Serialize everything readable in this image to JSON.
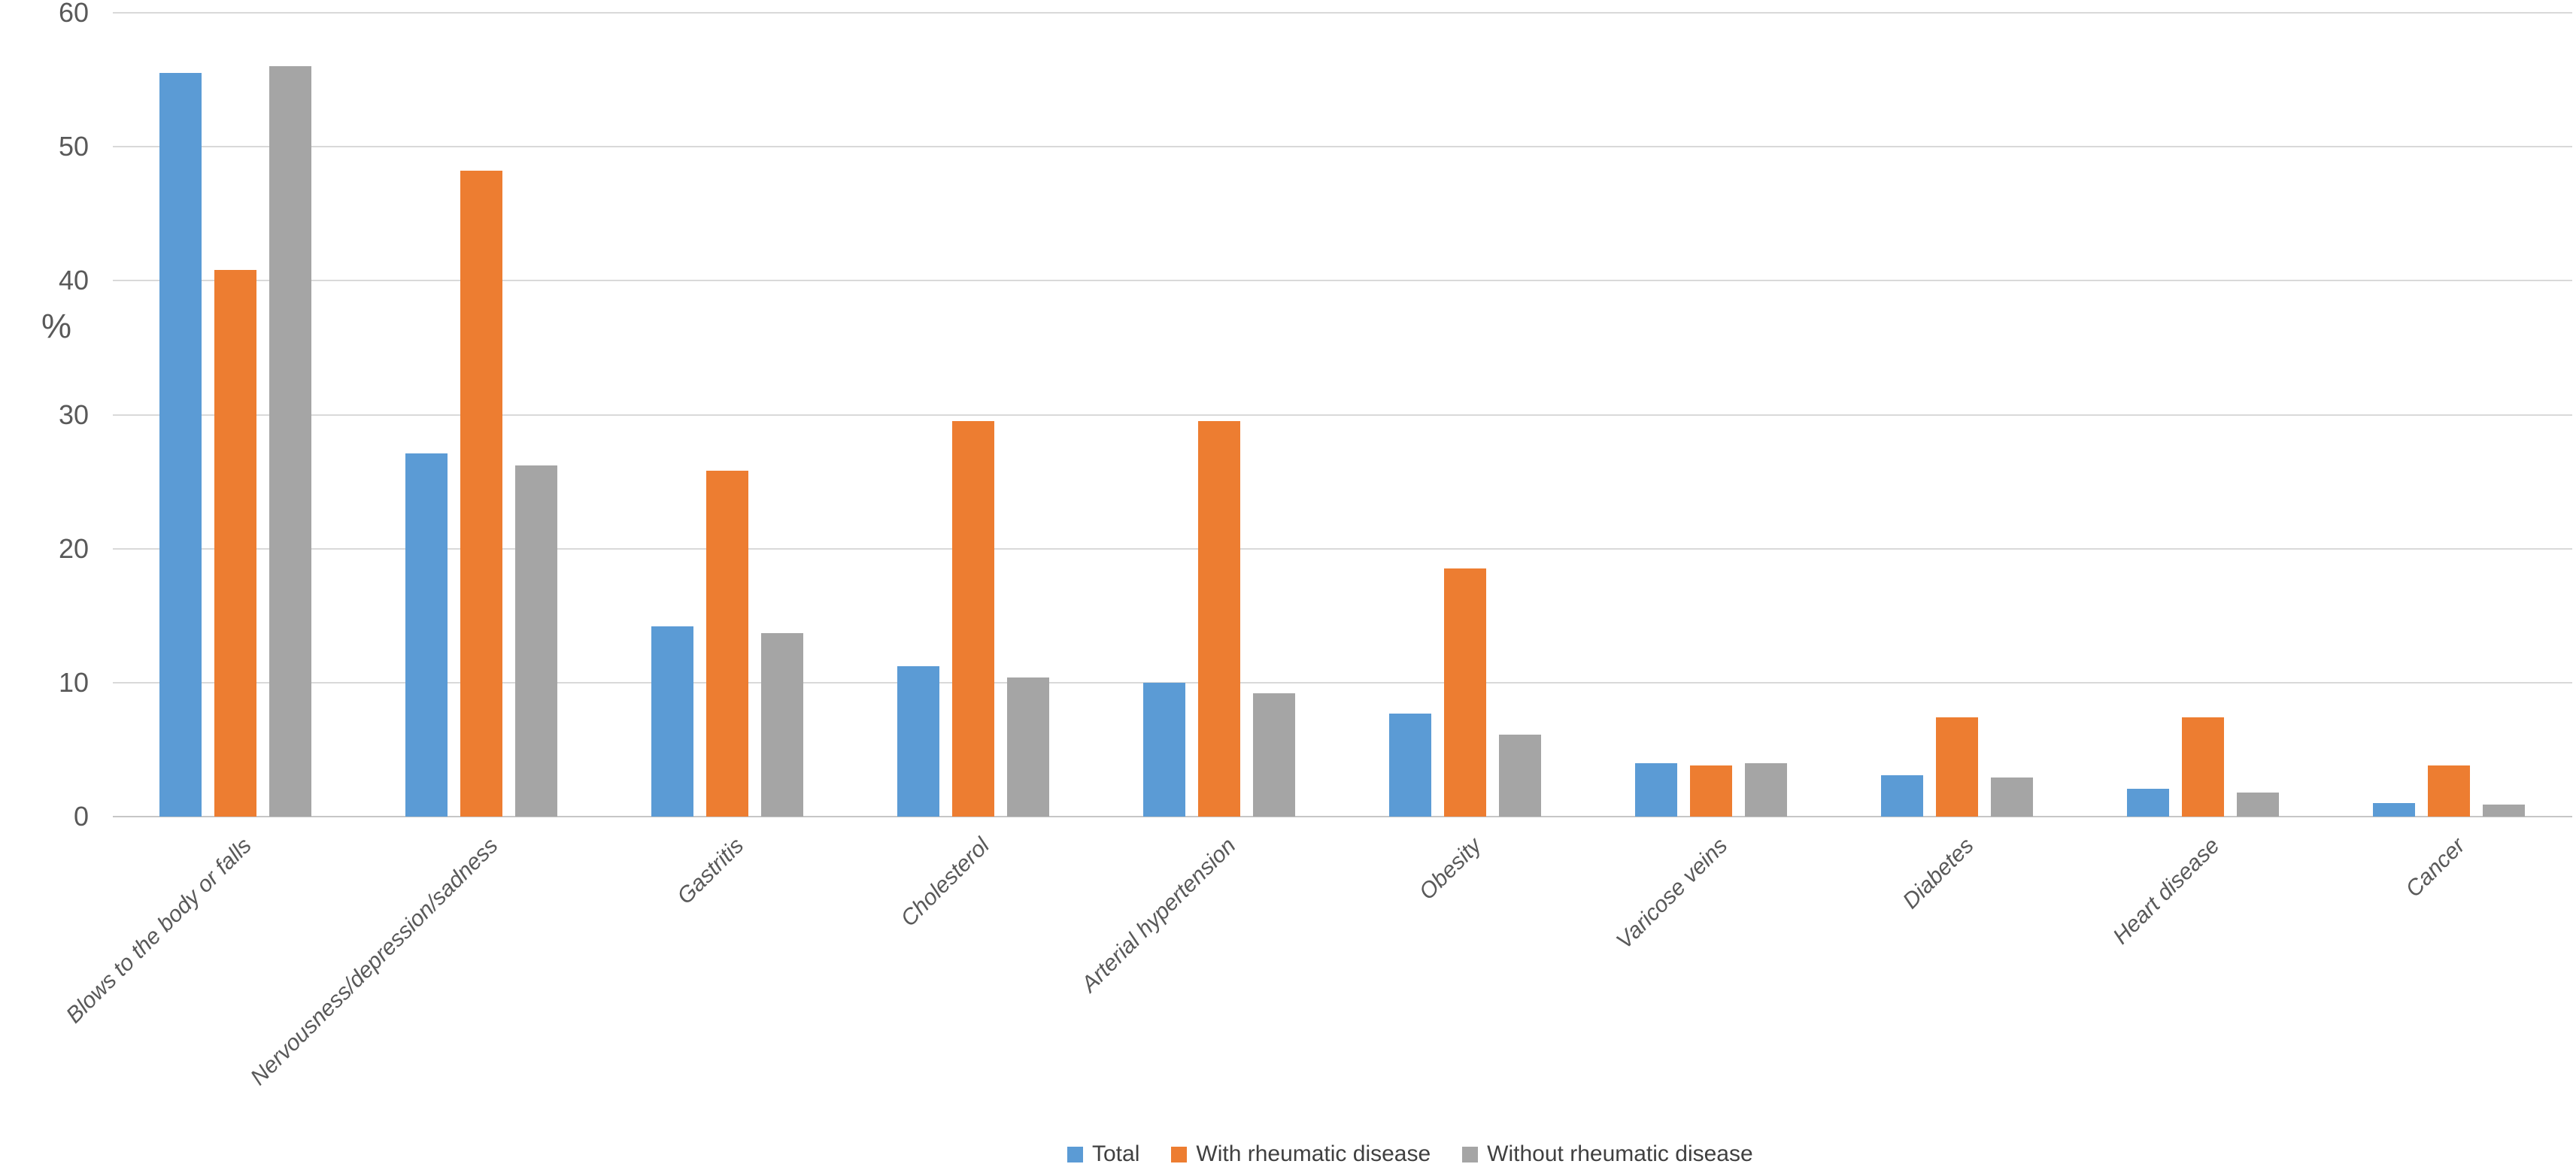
{
  "chart_data": {
    "type": "bar",
    "title": "",
    "xlabel": "",
    "ylabel": "%",
    "categories": [
      "Blows to the body or falls",
      "Nervousness/depression/sadness",
      "Gastritis",
      "Cholesterol",
      "Arterial hypertension",
      "Obesity",
      "Varicose veins",
      "Diabetes",
      "Heart disease",
      "Cancer"
    ],
    "series": [
      {
        "name": "Total",
        "color": "#5B9BD5",
        "values": [
          55.5,
          27.1,
          14.2,
          11.2,
          10.0,
          7.7,
          4.0,
          3.1,
          2.1,
          1.0
        ]
      },
      {
        "name": "With rheumatic disease",
        "color": "#ED7D31",
        "values": [
          40.8,
          48.2,
          25.8,
          29.5,
          29.5,
          18.5,
          3.8,
          7.4,
          7.4,
          3.8
        ]
      },
      {
        "name": "Without rheumatic disease",
        "color": "#A5A5A5",
        "values": [
          56.0,
          26.2,
          13.7,
          10.4,
          9.2,
          6.1,
          4.0,
          2.9,
          1.8,
          0.9
        ]
      }
    ],
    "y_axis": {
      "min": 0,
      "max": 60,
      "step": 10,
      "tick_labels": [
        "0",
        "10",
        "20",
        "30",
        "40",
        "50",
        "60"
      ]
    },
    "grid": true,
    "legend_position": "bottom-center",
    "axis_text_color": "#595959",
    "gridline_color": "#d9d9d9"
  }
}
